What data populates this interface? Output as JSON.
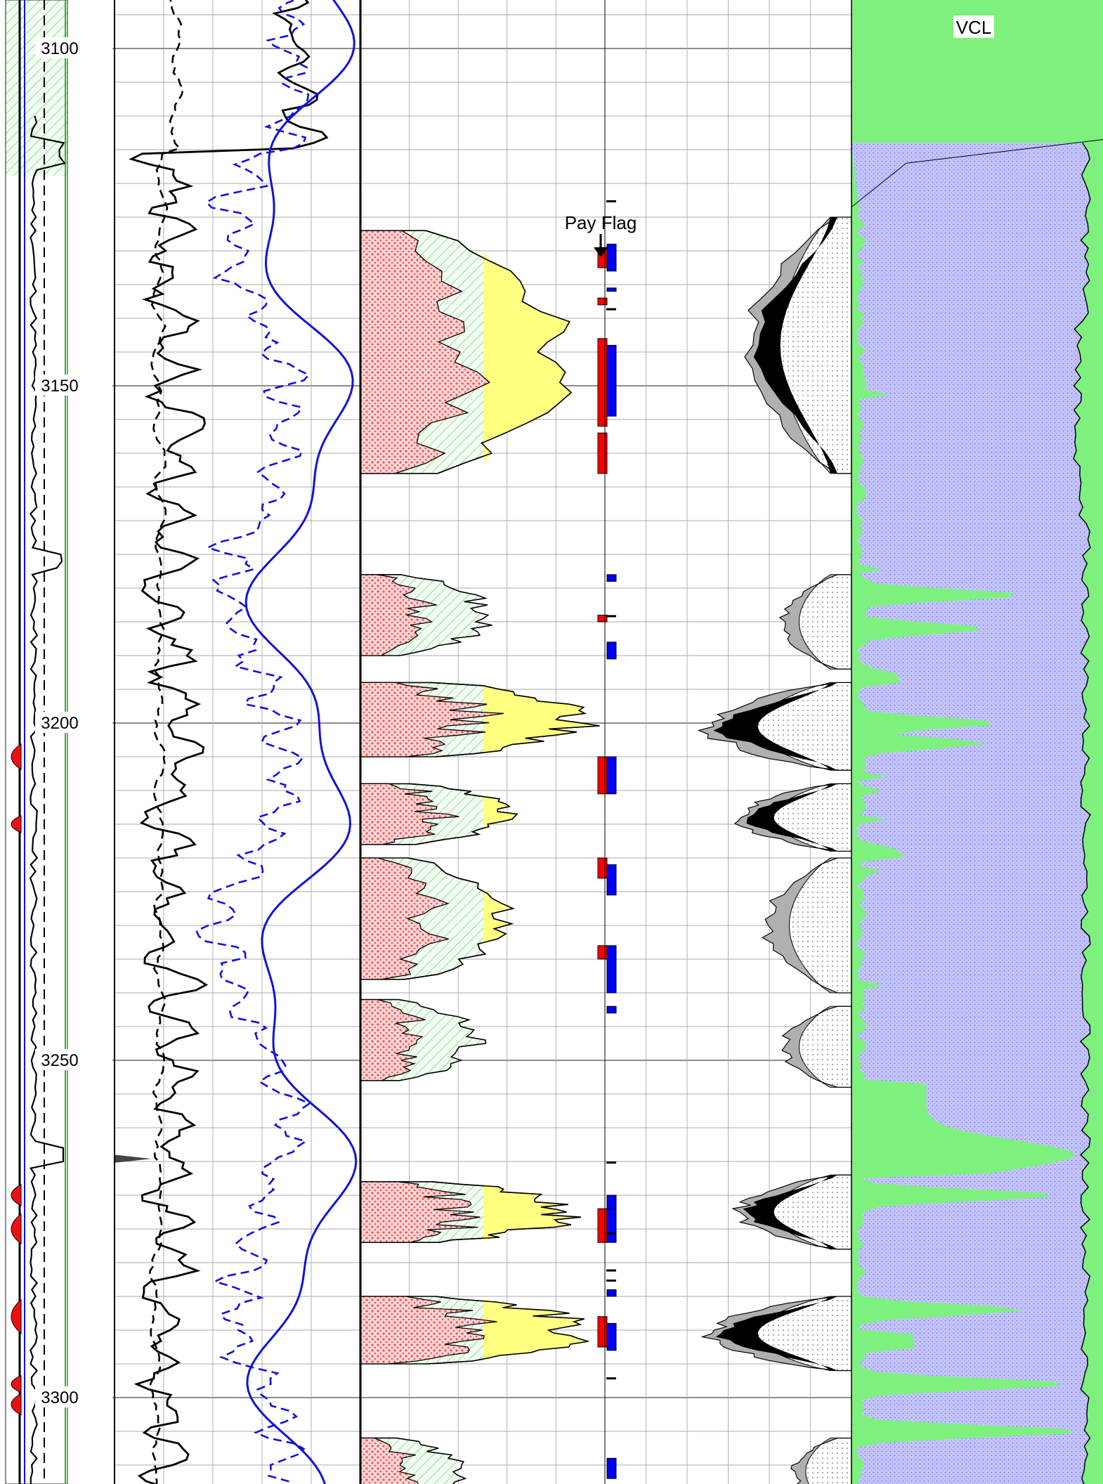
{
  "chart_data": {
    "type": "well-log",
    "depth_range": [
      3090,
      3318
    ],
    "depth_ticks": [
      3100,
      3150,
      3200,
      3250,
      3300
    ],
    "grid": true,
    "colors": {
      "vcl_fill": "#7ef07e",
      "sand_fill": "#b8b8ff",
      "pay_red": "#ff0000",
      "pay_blue": "#0000ff",
      "hydrocarbon_yellow": "#ffff80",
      "porosity_red": "#ee5555",
      "green_hatch": "#66cc66",
      "curve_blue": "#1111dd",
      "gray": "#b0b0b0"
    },
    "tracks": {
      "pay_flag": {
        "label": "Pay Flag",
        "red_intervals": [
          [
            3129.5,
            3132.5
          ],
          [
            3137,
            3138
          ],
          [
            3143,
            3156
          ],
          [
            3157,
            3163
          ],
          [
            3184,
            3185
          ],
          [
            3205,
            3210.5
          ],
          [
            3220,
            3223
          ],
          [
            3233,
            3235
          ],
          [
            3272,
            3277
          ],
          [
            3288,
            3292.5
          ]
        ],
        "blue_intervals": [
          [
            3129,
            3133
          ],
          [
            3135.5,
            3136
          ],
          [
            3144,
            3154.5
          ],
          [
            3178,
            3179
          ],
          [
            3188,
            3190.5
          ],
          [
            3205,
            3210.5
          ],
          [
            3221,
            3225.5
          ],
          [
            3233,
            3240
          ],
          [
            3242,
            3243
          ],
          [
            3270,
            3272
          ],
          [
            3272,
            3277
          ],
          [
            3284,
            3285
          ],
          [
            3289,
            3293
          ],
          [
            3309,
            3312
          ]
        ]
      },
      "vcl": {
        "label": "VCL"
      }
    }
  }
}
